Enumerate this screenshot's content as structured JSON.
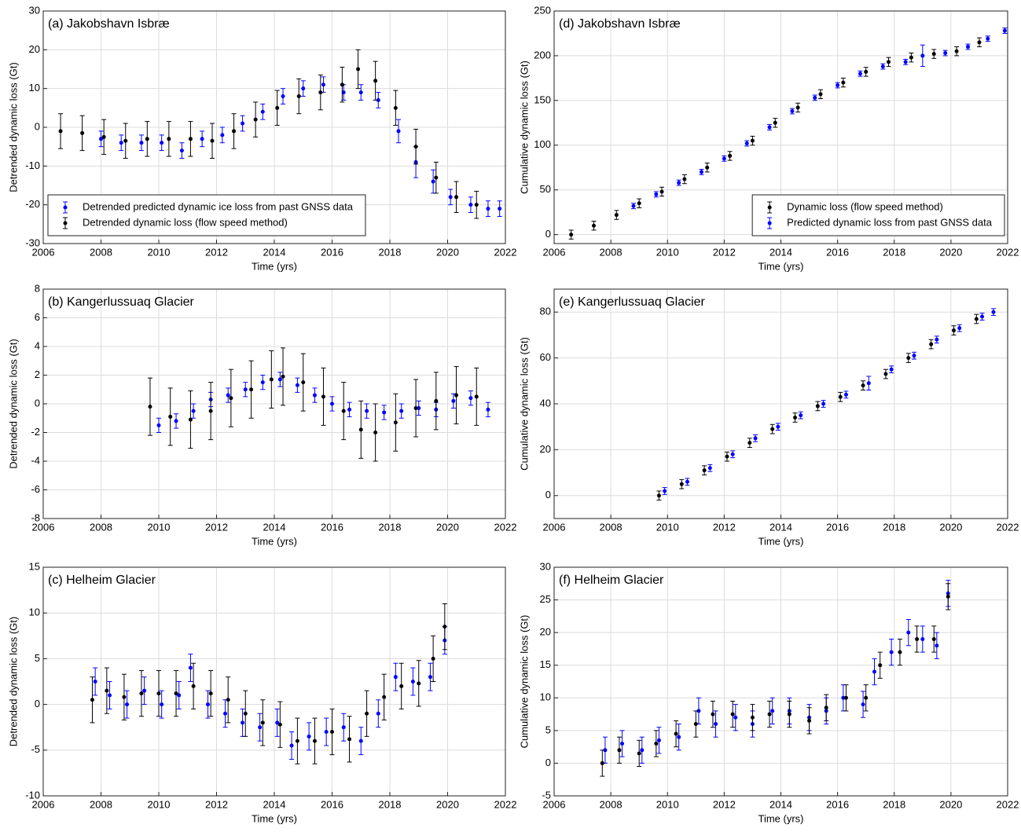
{
  "chart_data": [
    {
      "type": "errorbar",
      "title": "(a) Jakobshavn Isbræ",
      "xlabel": "Time (yrs)",
      "ylabel": "Detrended dynamic loss (Gt)",
      "xlim": [
        2006,
        2022
      ],
      "xticks": [
        2006,
        2008,
        2010,
        2012,
        2014,
        2016,
        2018,
        2020,
        2022
      ],
      "ylim": [
        -30,
        30
      ],
      "yticks": [
        -30,
        -20,
        -10,
        0,
        10,
        20,
        30
      ],
      "grid": true,
      "legend": "lower left",
      "series": [
        {
          "name": "Detrended predicted dynamic ice loss from past GNSS data",
          "color": "#0000ff",
          "x": [
            2008,
            2008.7,
            2009.4,
            2010.1,
            2010.8,
            2011.5,
            2012.2,
            2012.9,
            2013.6,
            2014.3,
            2015,
            2015.7,
            2016.4,
            2017,
            2017.6,
            2018.3,
            2018.9,
            2019.5,
            2020.1,
            2020.8,
            2021.4,
            2021.8
          ],
          "values": [
            -3,
            -4,
            -4,
            -4,
            -6,
            -3,
            -2,
            1,
            4,
            8,
            10,
            11,
            9,
            9,
            7,
            -1,
            -9,
            -14,
            -18,
            -20,
            -21,
            -21
          ],
          "errors": [
            2,
            2,
            2,
            2,
            2,
            2,
            2,
            2,
            2,
            2,
            2,
            2,
            2,
            2,
            2,
            3,
            4,
            3,
            2,
            2,
            2,
            2
          ]
        },
        {
          "name": "Detrended dynamic loss (flow speed method)",
          "color": "#000000",
          "x": [
            2006.6,
            2007.35,
            2008.1,
            2008.85,
            2009.6,
            2010.35,
            2011.1,
            2011.85,
            2012.6,
            2013.35,
            2014.1,
            2014.85,
            2015.6,
            2016.35,
            2016.9,
            2017.5,
            2018.2,
            2018.9,
            2019.6,
            2020.3,
            2021
          ],
          "values": [
            -1,
            -1.5,
            -2.5,
            -3.5,
            -3,
            -3,
            -3,
            -3.5,
            -1,
            2,
            5,
            8,
            9,
            11,
            15,
            12,
            5,
            -5,
            -13,
            -18,
            -20
          ],
          "errors": [
            4.5,
            4.5,
            4.5,
            4.5,
            4.5,
            4.5,
            4.5,
            4.5,
            4.5,
            4.5,
            4.5,
            4.5,
            4.5,
            4.5,
            5,
            5,
            4.5,
            4.5,
            4,
            4,
            3.5
          ]
        }
      ]
    },
    {
      "type": "errorbar",
      "title": "(d) Jakobshavn Isbræ",
      "xlabel": "Time (yrs)",
      "ylabel": "Cumulative dynamic loss (Gt)",
      "xlim": [
        2006,
        2022
      ],
      "xticks": [
        2006,
        2008,
        2010,
        2012,
        2014,
        2016,
        2018,
        2020,
        2022
      ],
      "ylim": [
        -10,
        250
      ],
      "yticks": [
        0,
        50,
        100,
        150,
        200,
        250
      ],
      "grid": true,
      "legend": "lower right",
      "series": [
        {
          "name": "Dynamic loss (flow speed method)",
          "color": "#000000",
          "x": [
            2006.6,
            2007.4,
            2008.2,
            2009,
            2009.8,
            2010.6,
            2011.4,
            2012.2,
            2013,
            2013.8,
            2014.6,
            2015.4,
            2016.2,
            2017,
            2017.8,
            2018.6,
            2019.4,
            2020.2,
            2021
          ],
          "values": [
            0,
            10,
            22,
            35,
            48,
            62,
            75,
            88,
            105,
            125,
            142,
            157,
            170,
            182,
            193,
            198,
            202,
            205,
            215
          ],
          "errors": [
            5,
            5,
            5,
            5,
            5,
            5,
            5,
            5,
            5,
            5,
            5,
            5,
            5,
            5,
            5,
            5,
            5,
            5,
            5
          ]
        },
        {
          "name": "Predicted dynamic loss from past GNSS data",
          "color": "#0000ff",
          "x": [
            2008.8,
            2009.6,
            2010.4,
            2011.2,
            2012,
            2012.8,
            2013.6,
            2014.4,
            2015.2,
            2016,
            2016.8,
            2017.6,
            2018.4,
            2019,
            2019.8,
            2020.6,
            2021.3,
            2021.9
          ],
          "values": [
            32,
            45,
            58,
            70,
            85,
            102,
            120,
            138,
            153,
            167,
            180,
            188,
            193,
            200,
            203,
            210,
            219,
            228
          ],
          "errors": [
            3,
            3,
            3,
            3,
            3,
            3,
            3,
            3,
            3,
            3,
            3,
            3,
            3,
            12,
            3,
            3,
            3,
            3
          ]
        }
      ]
    },
    {
      "type": "errorbar",
      "title": "(b) Kangerlussuaq Glacier",
      "xlabel": "Time (yrs)",
      "ylabel": "Detrended dynamic loss (Gt)",
      "xlim": [
        2006,
        2022
      ],
      "xticks": [
        2006,
        2008,
        2010,
        2012,
        2014,
        2016,
        2018,
        2020,
        2022
      ],
      "ylim": [
        -8,
        8
      ],
      "yticks": [
        -8,
        -6,
        -4,
        -2,
        0,
        2,
        4,
        6,
        8
      ],
      "grid": true,
      "series": [
        {
          "color": "#000000",
          "x": [
            2009.7,
            2010.4,
            2011.1,
            2011.8,
            2012.5,
            2013.2,
            2013.9,
            2014.3,
            2015,
            2015.7,
            2016.4,
            2017,
            2017.5,
            2018.2,
            2018.9,
            2019.6,
            2020.3,
            2021
          ],
          "values": [
            -0.2,
            -0.9,
            -1.1,
            -0.5,
            0.4,
            1.0,
            1.7,
            1.9,
            1.5,
            0.5,
            -0.5,
            -1.8,
            -2.0,
            -1.3,
            -0.3,
            0.2,
            0.6,
            0.5
          ],
          "errors": [
            2,
            2,
            2,
            2,
            2,
            2,
            2,
            2,
            2,
            2,
            2,
            2,
            2,
            2,
            2,
            2,
            2,
            2
          ]
        },
        {
          "color": "#0000ff",
          "x": [
            2010,
            2010.6,
            2011.2,
            2011.8,
            2012.4,
            2013,
            2013.6,
            2014.2,
            2014.8,
            2015.4,
            2016,
            2016.6,
            2017.2,
            2017.8,
            2018.4,
            2019,
            2019.6,
            2020.2,
            2020.8,
            2021.4
          ],
          "values": [
            -1.5,
            -1.2,
            -0.5,
            0.3,
            0.6,
            1.0,
            1.5,
            1.7,
            1.3,
            0.6,
            0,
            -0.4,
            -0.5,
            -0.6,
            -0.5,
            -0.3,
            -0.4,
            0.2,
            0.4,
            -0.4
          ],
          "errors": [
            0.5,
            0.5,
            0.5,
            0.5,
            0.5,
            0.5,
            0.5,
            0.5,
            0.5,
            0.5,
            0.5,
            0.5,
            0.5,
            0.5,
            0.5,
            0.5,
            0.5,
            0.5,
            0.5,
            0.5
          ]
        }
      ]
    },
    {
      "type": "errorbar",
      "title": "(e) Kangerlussuaq Glacier",
      "xlabel": "Time (yrs)",
      "ylabel": "Cumulative dynamic loss (Gt)",
      "xlim": [
        2006,
        2022
      ],
      "xticks": [
        2006,
        2008,
        2010,
        2012,
        2014,
        2016,
        2018,
        2020,
        2022
      ],
      "ylim": [
        -10,
        90
      ],
      "yticks": [
        0,
        20,
        40,
        60,
        80
      ],
      "grid": true,
      "series": [
        {
          "color": "#000000",
          "x": [
            2009.7,
            2010.5,
            2011.3,
            2012.1,
            2012.9,
            2013.7,
            2014.5,
            2015.3,
            2016.1,
            2016.9,
            2017.7,
            2018.5,
            2019.3,
            2020.1,
            2020.9
          ],
          "values": [
            0,
            5,
            11,
            17,
            23,
            29,
            34,
            39,
            43,
            48,
            53,
            60,
            66,
            72,
            77
          ],
          "errors": [
            2,
            2,
            2,
            2,
            2,
            2,
            2,
            2,
            2,
            2,
            2,
            2,
            2,
            2,
            2
          ]
        },
        {
          "color": "#0000ff",
          "x": [
            2009.9,
            2010.7,
            2011.5,
            2012.3,
            2013.1,
            2013.9,
            2014.7,
            2015.5,
            2016.3,
            2017.1,
            2017.9,
            2018.7,
            2019.5,
            2020.3,
            2021.1,
            2021.5
          ],
          "values": [
            2,
            6,
            12,
            18,
            25,
            30,
            35,
            40,
            44,
            49,
            55,
            61,
            68,
            73,
            78,
            80
          ],
          "errors": [
            1.5,
            1.5,
            1.5,
            1.5,
            1.5,
            1.5,
            1.5,
            1.5,
            1.5,
            3,
            1.5,
            1.5,
            1.5,
            1.5,
            1.5,
            1.5
          ]
        }
      ]
    },
    {
      "type": "errorbar",
      "title": "(c) Helheim Glacier",
      "xlabel": "Time (yrs)",
      "ylabel": "Detrended dynamic loss (Gt)",
      "xlim": [
        2006,
        2022
      ],
      "xticks": [
        2006,
        2008,
        2010,
        2012,
        2014,
        2016,
        2018,
        2020,
        2022
      ],
      "ylim": [
        -10,
        15
      ],
      "yticks": [
        -10,
        -5,
        0,
        5,
        10,
        15
      ],
      "grid": true,
      "series": [
        {
          "color": "#000000",
          "x": [
            2007.7,
            2008.2,
            2008.8,
            2009.4,
            2010,
            2010.6,
            2011.2,
            2011.8,
            2012.4,
            2013,
            2013.6,
            2014.2,
            2014.8,
            2015.4,
            2016,
            2016.6,
            2017.2,
            2017.8,
            2018.4,
            2019,
            2019.5,
            2019.9
          ],
          "values": [
            0.5,
            1.5,
            0.8,
            1.2,
            1.2,
            1.2,
            2.0,
            1.2,
            0.5,
            -1,
            -2,
            -2.2,
            -4,
            -4,
            -3,
            -3.8,
            -1,
            0.8,
            2,
            2.3,
            5,
            8.5
          ],
          "errors": [
            2.5,
            2.5,
            2.5,
            2.5,
            2.5,
            2.5,
            2.5,
            2.5,
            2.5,
            2.5,
            2.5,
            2.5,
            2.5,
            2.5,
            2.5,
            2.5,
            2.5,
            2.5,
            2.5,
            2.5,
            2.5,
            2.5
          ]
        },
        {
          "color": "#0000ff",
          "x": [
            2007.8,
            2008.3,
            2008.9,
            2009.5,
            2010.1,
            2010.7,
            2011.1,
            2011.7,
            2012.3,
            2012.9,
            2013.5,
            2014.1,
            2014.6,
            2015.2,
            2015.8,
            2016.4,
            2017,
            2017.6,
            2018.2,
            2018.8,
            2019.4,
            2019.9
          ],
          "values": [
            2.5,
            1,
            0,
            1.5,
            0,
            1,
            4,
            0,
            -1,
            -2,
            -2.5,
            -2,
            -4.5,
            -3.5,
            -3,
            -2.5,
            -4,
            -1,
            3,
            2.5,
            3,
            7
          ],
          "errors": [
            1.5,
            1.5,
            1.5,
            1.5,
            1.5,
            1.5,
            1.5,
            1.5,
            1.5,
            1.5,
            1.5,
            1.5,
            1.5,
            1.5,
            1.5,
            1.5,
            1.5,
            1.5,
            1.5,
            1.5,
            1.5,
            1.5
          ]
        }
      ]
    },
    {
      "type": "errorbar",
      "title": "(f) Helheim Glacier",
      "xlabel": "Time (yrs)",
      "ylabel": "Cumulative dynamic loss (Gt)",
      "xlim": [
        2006,
        2022
      ],
      "xticks": [
        2006,
        2008,
        2010,
        2012,
        2014,
        2016,
        2018,
        2020,
        2022
      ],
      "ylim": [
        -5,
        30
      ],
      "yticks": [
        -5,
        0,
        5,
        10,
        15,
        20,
        25,
        30
      ],
      "grid": true,
      "series": [
        {
          "color": "#000000",
          "x": [
            2007.7,
            2008.3,
            2009,
            2009.6,
            2010.3,
            2011,
            2011.6,
            2012.3,
            2013,
            2013.6,
            2014.3,
            2015,
            2015.6,
            2016.3,
            2017,
            2017.5,
            2018.2,
            2018.8,
            2019.4,
            2019.9
          ],
          "values": [
            0,
            2,
            1.5,
            3,
            4.5,
            6,
            7.5,
            7.5,
            7,
            7.5,
            7.5,
            6.5,
            8.5,
            10,
            10,
            15,
            17,
            19,
            19,
            25.5
          ],
          "errors": [
            2,
            2,
            2,
            2,
            2,
            2,
            2,
            2,
            2,
            2,
            2,
            2,
            2,
            2,
            2,
            2,
            2,
            2,
            2,
            2
          ]
        },
        {
          "color": "#0000ff",
          "x": [
            2007.8,
            2008.4,
            2009.1,
            2009.7,
            2010.4,
            2011.1,
            2011.7,
            2012.4,
            2013,
            2013.7,
            2014.3,
            2015,
            2015.6,
            2016.2,
            2016.9,
            2017.3,
            2017.9,
            2018.5,
            2019,
            2019.5,
            2019.9
          ],
          "values": [
            2,
            3,
            2,
            3.5,
            4,
            8,
            6,
            7,
            6,
            8,
            8,
            7,
            8,
            10,
            9,
            14,
            17,
            20,
            19,
            18,
            26
          ],
          "errors": [
            2,
            2,
            2,
            2,
            2,
            2,
            2,
            2,
            2,
            2,
            2,
            2,
            2,
            2,
            2,
            2,
            2,
            2,
            2,
            2,
            2
          ]
        }
      ]
    }
  ]
}
